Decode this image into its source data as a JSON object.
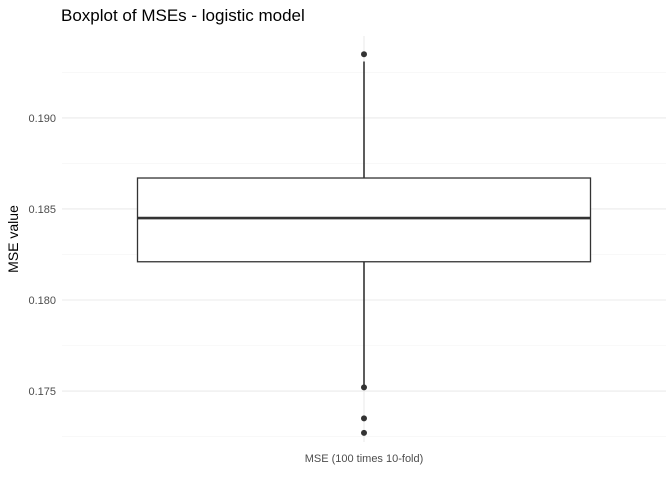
{
  "chart_data": {
    "type": "boxplot",
    "title": "Boxplot of MSEs - logistic model",
    "xlabel": "",
    "ylabel": "MSE value",
    "categories": [
      "MSE (100 times 10-fold)"
    ],
    "ylim": [
      0.1722,
      0.1945
    ],
    "yticks": [
      0.175,
      0.18,
      0.185,
      0.19
    ],
    "ytick_labels": [
      "0.175",
      "0.180",
      "0.185",
      "0.190"
    ],
    "grid": true,
    "legend": "none",
    "boxes": [
      {
        "category": "MSE (100 times 10-fold)",
        "whisker_low": 0.1752,
        "q1": 0.1821,
        "median": 0.1845,
        "q3": 0.1867,
        "whisker_high": 0.1931,
        "outliers": [
          0.1935,
          0.1752,
          0.1735,
          0.1727
        ]
      }
    ],
    "colors": {
      "box_line": "#333333",
      "box_fill": "#ffffff",
      "point": "#333333"
    }
  }
}
